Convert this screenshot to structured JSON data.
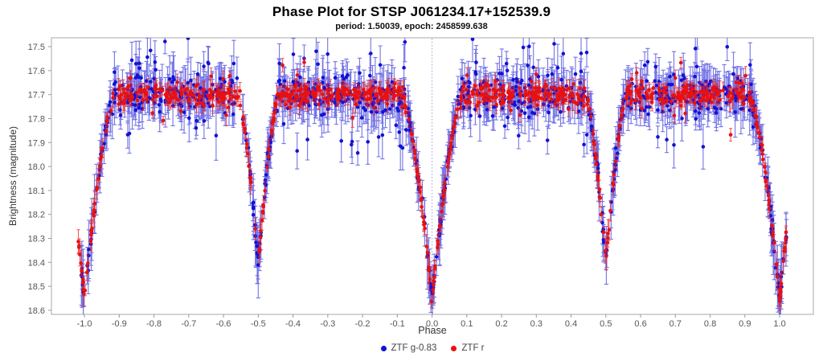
{
  "figure": {
    "title": "Phase Plot for STSP J061234.17+152539.9",
    "subtitle": "period: 1.50039, epoch: 2458599.638"
  },
  "axes": {
    "x_label": "Phase",
    "y_label": "Brightness (magnitude)"
  },
  "legend": {
    "items": [
      {
        "label": "ZTF g-0.83",
        "color": "#1212d6"
      },
      {
        "label": "ZTF r",
        "color": "#e81111"
      }
    ]
  },
  "chart_data": {
    "type": "scatter",
    "title": "Phase Plot for STSP J061234.17+152539.9",
    "subtitle": "period: 1.50039, epoch: 2458599.638",
    "xlabel": "Phase",
    "ylabel": "Brightness (magnitude)",
    "grid": false,
    "legend_position": "bottom-center",
    "x_axis": {
      "min": -1.095,
      "max": 1.097,
      "ticks": [
        -1.0,
        -0.9,
        -0.8,
        -0.7,
        -0.6,
        -0.5,
        -0.4,
        -0.3,
        -0.2,
        -0.1,
        0.0,
        0.1,
        0.2,
        0.3,
        0.4,
        0.5,
        0.6,
        0.7,
        0.8,
        0.9,
        1.0
      ]
    },
    "y_axis": {
      "min": 17.463,
      "max": 18.617,
      "inverted_magnitude_scale": true,
      "ticks": [
        17.5,
        17.6,
        17.7,
        17.8,
        17.9,
        18.0,
        18.1,
        18.2,
        18.3,
        18.4,
        18.5,
        18.6
      ]
    },
    "zero_phase_marker": {
      "x": 0.0,
      "style": "dotted",
      "color": "#9a9ede"
    },
    "frame_color": "#a8a8a8",
    "tick_color": "#999999",
    "tick_label_color": "#555555",
    "series": [
      {
        "name": "ZTF g-0.83",
        "kind": "scatter-with-errorbars",
        "color": "#1212d6",
        "err_color": "rgba(30,30,215,0.62)",
        "n": 1050,
        "sigma": 0.038,
        "stray_frac": 0.13,
        "stray_max": 0.22,
        "err_min": 0.045,
        "err_max": 0.105,
        "dot_radius": 2.3,
        "cap": 2.6
      },
      {
        "name": "ZTF r",
        "kind": "scatter-with-errorbars",
        "color": "#e81111",
        "err_color": "rgba(235,30,30,0.72)",
        "n": 830,
        "sigma": 0.021,
        "stray_frac": 0.05,
        "stray_max": 0.12,
        "err_min": 0.015,
        "err_max": 0.045,
        "dot_radius": 2.3,
        "cap": 2.0
      }
    ],
    "light_curve_model": {
      "description": "Eclipsing binary phase curve, both bands overlapping at common baseline",
      "baseline_mag": 17.7,
      "primary_eclipse": {
        "phase": 0.0,
        "repeats_at": [
          -1.0,
          1.0
        ],
        "minimum_mag": 18.55,
        "depth": 0.85,
        "half_width": 0.088,
        "shape_power": 1.5
      },
      "secondary_eclipse": {
        "phase": 0.5,
        "repeats_at": [
          -0.5
        ],
        "minimum_mag": 18.4,
        "depth": 0.7,
        "half_width": 0.06,
        "shape_power": 1.5
      },
      "phase_range": [
        -1.02,
        1.02
      ],
      "in_eclipse_noise_factor": 0.55,
      "seed": 1234
    },
    "mean_light_curve_profile": [
      [
        -1.02,
        18.43
      ],
      [
        -1.0,
        18.55
      ],
      [
        -0.96,
        18.12
      ],
      [
        -0.92,
        17.76
      ],
      [
        -0.9,
        17.7
      ],
      [
        -0.8,
        17.7
      ],
      [
        -0.7,
        17.7
      ],
      [
        -0.6,
        17.7
      ],
      [
        -0.56,
        17.72
      ],
      [
        -0.53,
        17.97
      ],
      [
        -0.5,
        18.4
      ],
      [
        -0.47,
        17.97
      ],
      [
        -0.44,
        17.72
      ],
      [
        -0.4,
        17.7
      ],
      [
        -0.3,
        17.7
      ],
      [
        -0.2,
        17.7
      ],
      [
        -0.1,
        17.71
      ],
      [
        -0.06,
        17.88
      ],
      [
        -0.03,
        18.22
      ],
      [
        0.0,
        18.55
      ],
      [
        0.03,
        18.22
      ],
      [
        0.06,
        17.88
      ],
      [
        0.1,
        17.71
      ],
      [
        0.2,
        17.7
      ],
      [
        0.3,
        17.7
      ],
      [
        0.4,
        17.7
      ],
      [
        0.44,
        17.72
      ],
      [
        0.47,
        17.97
      ],
      [
        0.5,
        18.4
      ],
      [
        0.53,
        17.97
      ],
      [
        0.56,
        17.72
      ],
      [
        0.6,
        17.7
      ],
      [
        0.7,
        17.7
      ],
      [
        0.8,
        17.7
      ],
      [
        0.9,
        17.7
      ],
      [
        0.92,
        17.76
      ],
      [
        0.96,
        18.12
      ],
      [
        1.0,
        18.55
      ],
      [
        1.02,
        18.43
      ]
    ]
  }
}
